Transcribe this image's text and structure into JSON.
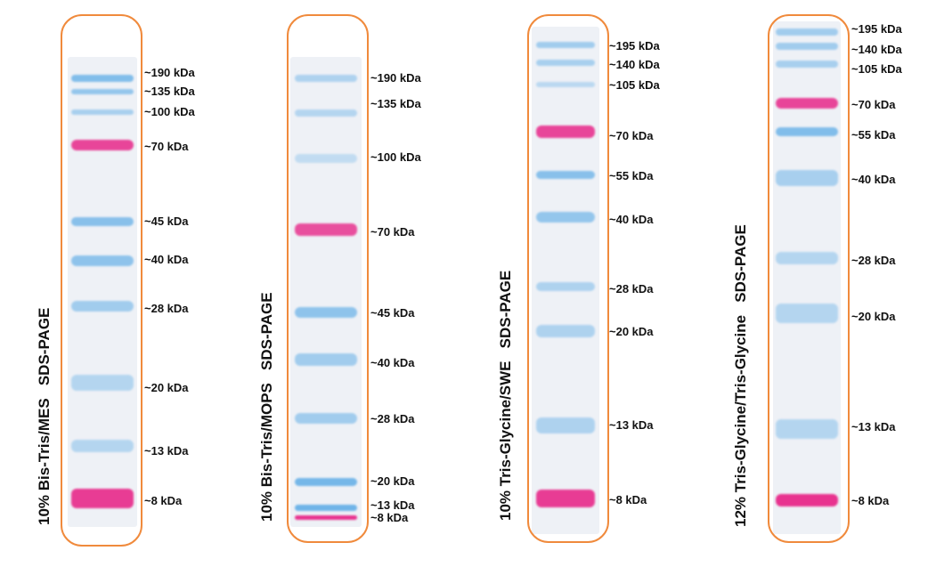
{
  "gels": [
    {
      "condition": "10% Bis-Tris/MES",
      "method": "SDS-PAGE",
      "bands": [
        {
          "label": "~190 kDa",
          "color": "blue"
        },
        {
          "label": "~135 kDa",
          "color": "blue"
        },
        {
          "label": "~100 kDa",
          "color": "blue"
        },
        {
          "label": "~70 kDa",
          "color": "pink"
        },
        {
          "label": "~45 kDa",
          "color": "blue"
        },
        {
          "label": "~40 kDa",
          "color": "blue"
        },
        {
          "label": "~28 kDa",
          "color": "blue"
        },
        {
          "label": "~20 kDa",
          "color": "blue"
        },
        {
          "label": "~13 kDa",
          "color": "blue"
        },
        {
          "label": "~8 kDa",
          "color": "pink"
        }
      ]
    },
    {
      "condition": "10% Bis-Tris/MOPS",
      "method": "SDS-PAGE",
      "bands": [
        {
          "label": "~190 kDa",
          "color": "blue"
        },
        {
          "label": "~135 kDa",
          "color": "blue"
        },
        {
          "label": "~100 kDa",
          "color": "blue"
        },
        {
          "label": "~70 kDa",
          "color": "pink"
        },
        {
          "label": "~45 kDa",
          "color": "blue"
        },
        {
          "label": "~40 kDa",
          "color": "blue"
        },
        {
          "label": "~28 kDa",
          "color": "blue"
        },
        {
          "label": "~20 kDa",
          "color": "blue"
        },
        {
          "label": "~13 kDa",
          "color": "blue"
        },
        {
          "label": "~8 kDa",
          "color": "pink"
        }
      ]
    },
    {
      "condition": "10% Tris-Glycine/SWE",
      "method": "SDS-PAGE",
      "bands": [
        {
          "label": "~195 kDa",
          "color": "blue"
        },
        {
          "label": "~140 kDa",
          "color": "blue"
        },
        {
          "label": "~105 kDa",
          "color": "blue"
        },
        {
          "label": "~70 kDa",
          "color": "pink"
        },
        {
          "label": "~55 kDa",
          "color": "blue"
        },
        {
          "label": "~40 kDa",
          "color": "blue"
        },
        {
          "label": "~28 kDa",
          "color": "blue"
        },
        {
          "label": "~20 kDa",
          "color": "blue"
        },
        {
          "label": "~13 kDa",
          "color": "blue"
        },
        {
          "label": "~8 kDa",
          "color": "pink"
        }
      ]
    },
    {
      "condition": "12% Tris-Glycine/Tris-Glycine",
      "method": "SDS-PAGE",
      "bands": [
        {
          "label": "~195 kDa",
          "color": "blue"
        },
        {
          "label": "~140 kDa",
          "color": "blue"
        },
        {
          "label": "~105 kDa",
          "color": "blue"
        },
        {
          "label": "~70 kDa",
          "color": "pink"
        },
        {
          "label": "~55 kDa",
          "color": "blue"
        },
        {
          "label": "~40 kDa",
          "color": "blue"
        },
        {
          "label": "~28 kDa",
          "color": "blue"
        },
        {
          "label": "~20 kDa",
          "color": "blue"
        },
        {
          "label": "~13 kDa",
          "color": "blue"
        },
        {
          "label": "~8 kDa",
          "color": "pink"
        }
      ]
    }
  ],
  "colors": {
    "frame": "#f08a3c",
    "blue_band": "#6fb4e8",
    "pink_band": "#e8338f",
    "lane_bg": "#eef1f6"
  }
}
